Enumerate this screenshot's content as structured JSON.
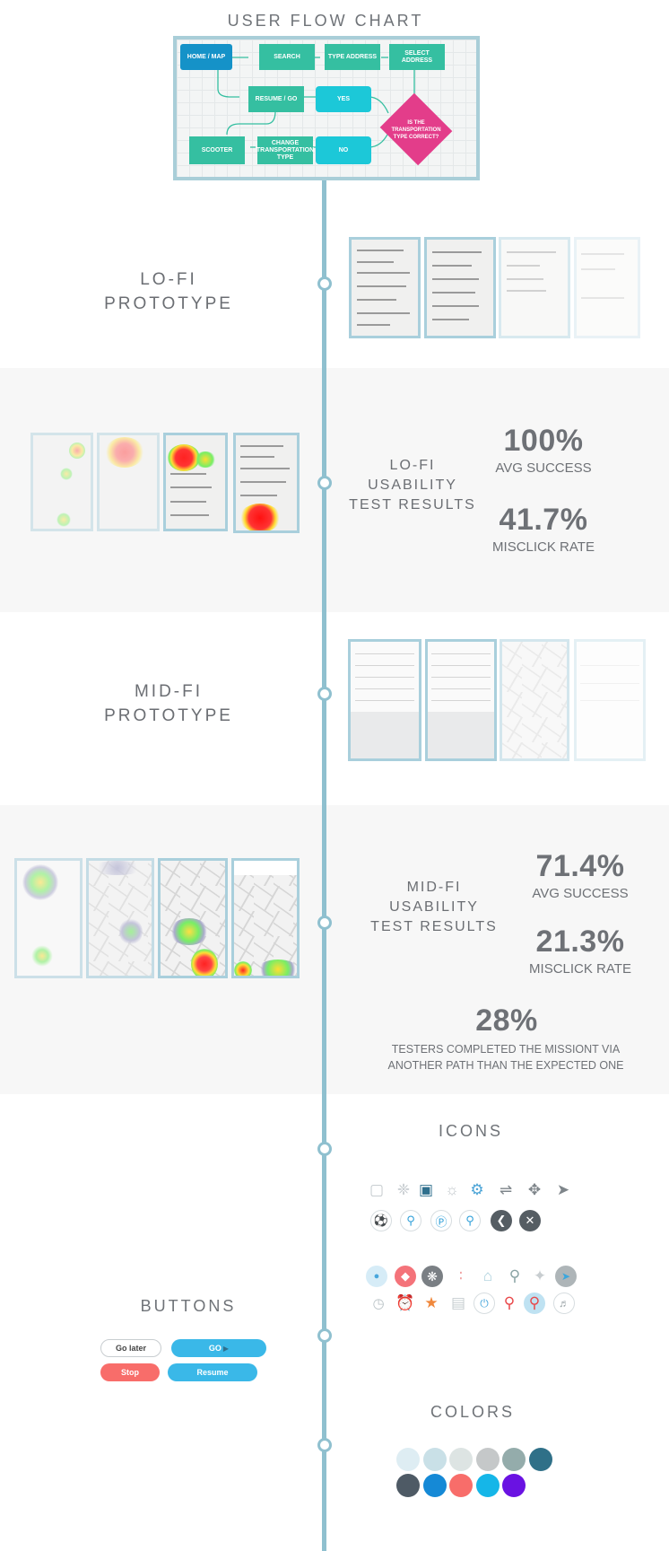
{
  "flow_chart": {
    "title": "USER FLOW CHART",
    "nodes": {
      "home": "HOME / MAP",
      "search": "SEARCH",
      "type_address": "TYPE ADDRESS",
      "select_address": "SELECT ADDRESS",
      "resume": "RESUME / GO",
      "yes": "YES",
      "question": "IS THE TRANSPORTATION TYPE CORRECT?",
      "scooter": "SCOOTER",
      "change": "CHANGE TRANSPORTATION TYPE",
      "no": "NO"
    }
  },
  "lofi_prototype": {
    "line1": "LO-FI",
    "line2": "PROTOTYPE"
  },
  "lofi_usability": {
    "line1": "LO-FI",
    "line2": "USABILITY",
    "line3": "TEST RESULTS",
    "stats": [
      {
        "value": "100%",
        "label": "AVG SUCCESS"
      },
      {
        "value": "41.7%",
        "label": "MISCLICK RATE"
      }
    ]
  },
  "midfi_prototype": {
    "line1": "MID-FI",
    "line2": "PROTOTYPE"
  },
  "midfi_usability": {
    "line1": "MID-FI",
    "line2": "USABILITY",
    "line3": "TEST RESULTS",
    "stats": [
      {
        "value": "71.4%",
        "label": "AVG SUCCESS"
      },
      {
        "value": "21.3%",
        "label": "MISCLICK RATE"
      }
    ],
    "extra_value": "28%",
    "extra_line1": "TESTERS COMPLETED THE MISSIONT VIA",
    "extra_line2": "ANOTHER PATH THAN THE EXPECTED ONE"
  },
  "icons": {
    "title": "ICONS",
    "row1": [
      "bus-icon",
      "scooter-icon",
      "car-icon",
      "bulb-icon",
      "gear-icon",
      "route-icon",
      "directions-icon",
      "send-icon"
    ],
    "row2": [
      "fuel-icon",
      "restaurant-icon",
      "parking-icon",
      "search-icon",
      "back-icon",
      "close-icon"
    ],
    "row3": [
      "location-dot-icon",
      "microphone-icon",
      "compass-icon",
      "audio-wave-icon",
      "home-icon",
      "pin-icon",
      "walk-icon",
      "navigate-icon"
    ],
    "row4": [
      "clock-icon",
      "alarm-icon",
      "star-icon",
      "briefcase-icon",
      "power-icon",
      "marker-icon",
      "marker-selected-icon",
      "speaker-icon"
    ]
  },
  "buttons": {
    "title": "BUTTONS",
    "go_later": "Go later",
    "go": "GO",
    "stop": "Stop",
    "resume": "Resume"
  },
  "colors": {
    "title": "COLORS",
    "swatches": [
      "#deedf3",
      "#c9e0e7",
      "#dde4e3",
      "#c5c8c9",
      "#94acab",
      "#2f7088",
      "#4e5a65",
      "#1589d6",
      "#f86d6a",
      "#15b6e8",
      "#6a12e2"
    ]
  },
  "theme": {
    "timeline": "#8fc0cf",
    "flow_green": "#35bfa1",
    "flow_blue": "#1592c8",
    "flow_cyan": "#1cc8d8",
    "flow_pink": "#e33d8a"
  }
}
